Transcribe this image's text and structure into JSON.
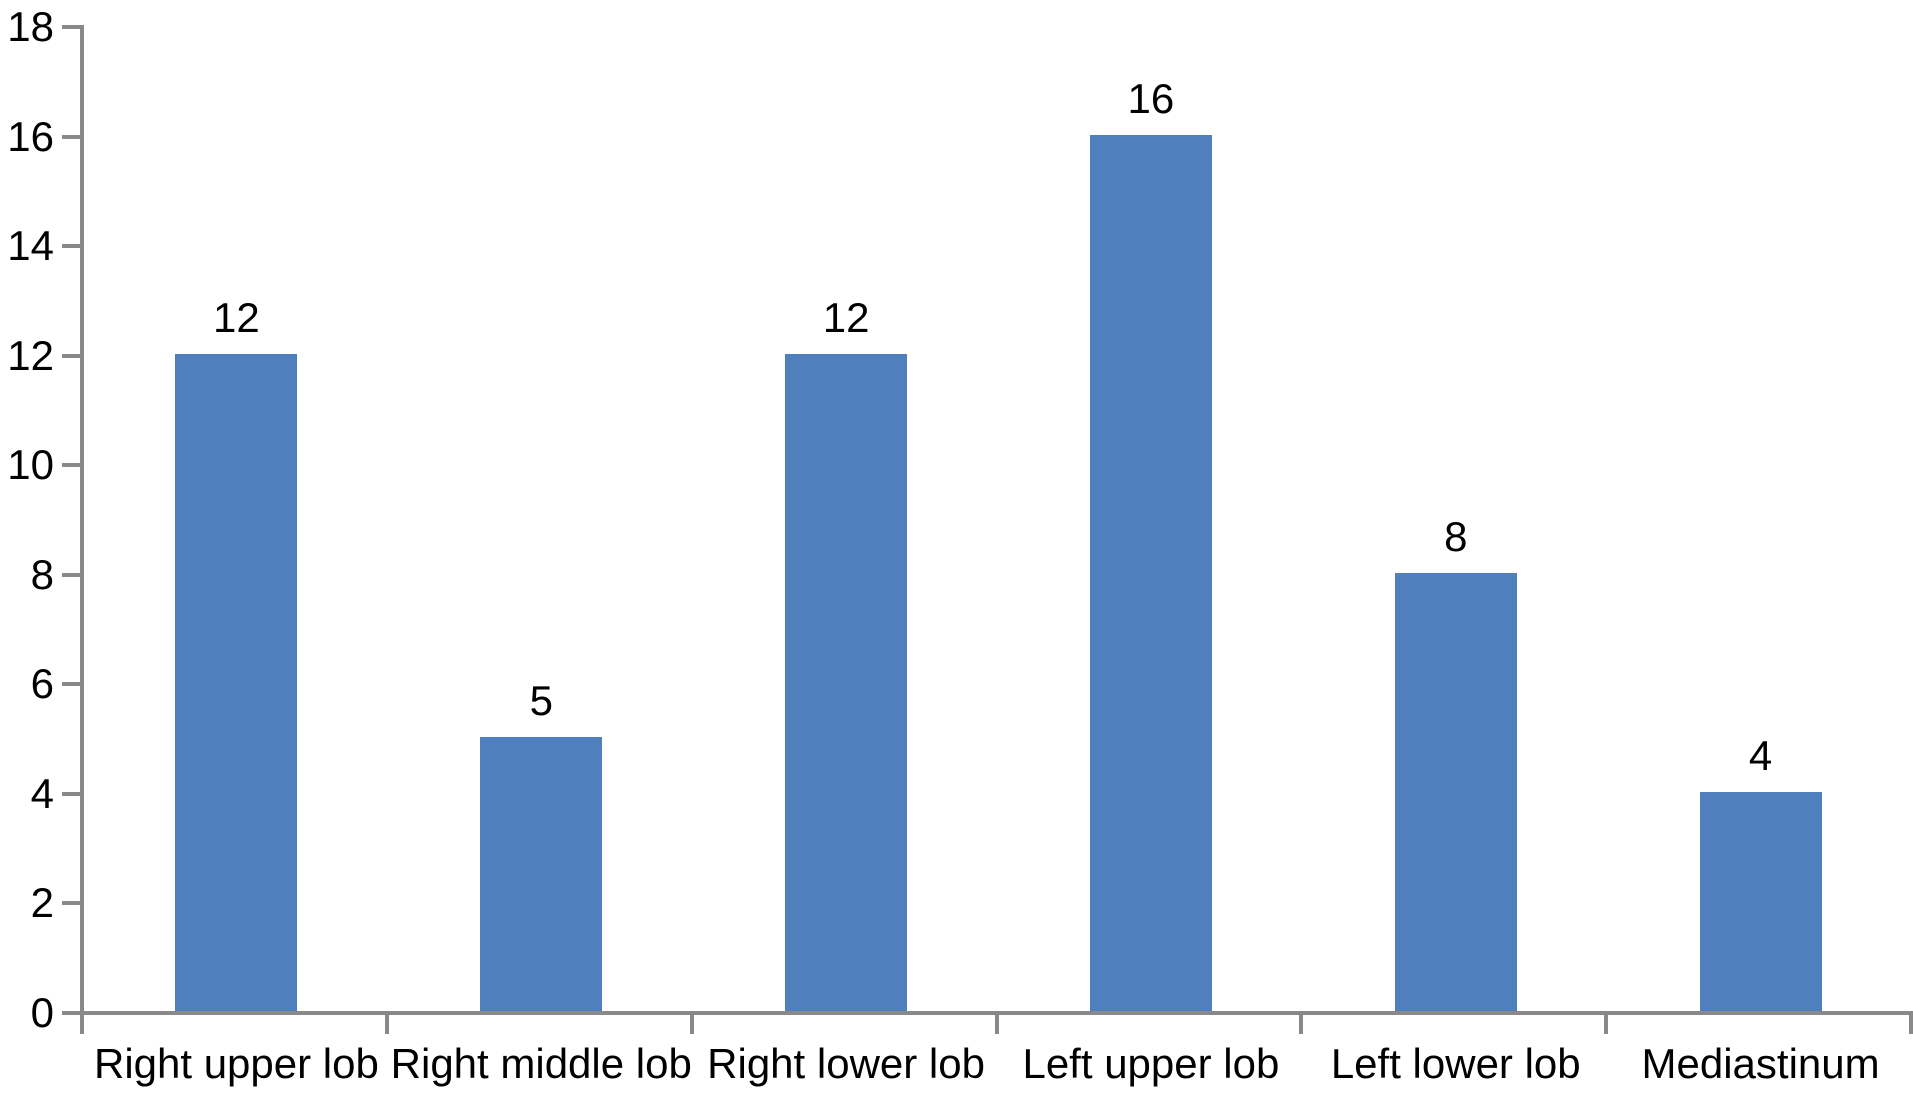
{
  "chart_data": {
    "type": "bar",
    "title": "",
    "xlabel": "",
    "ylabel": "",
    "categories": [
      "Right upper lob",
      "Right middle lob",
      "Right lower lob",
      "Left upper lob",
      "Left lower lob",
      "Mediastinum"
    ],
    "values": [
      12,
      5,
      12,
      16,
      8,
      4
    ],
    "data_labels": [
      "12",
      "5",
      "12",
      "16",
      "8",
      "4"
    ],
    "ylim": [
      0,
      18
    ],
    "ytick_step": 2,
    "ytick_labels": [
      "0",
      "2",
      "4",
      "6",
      "8",
      "10",
      "12",
      "14",
      "16",
      "18"
    ],
    "grid": false,
    "legend_position": "none",
    "colors": {
      "bar": "#4F80BD",
      "axis": "#898989",
      "text": "#000000",
      "background": "#FFFFFF"
    }
  }
}
